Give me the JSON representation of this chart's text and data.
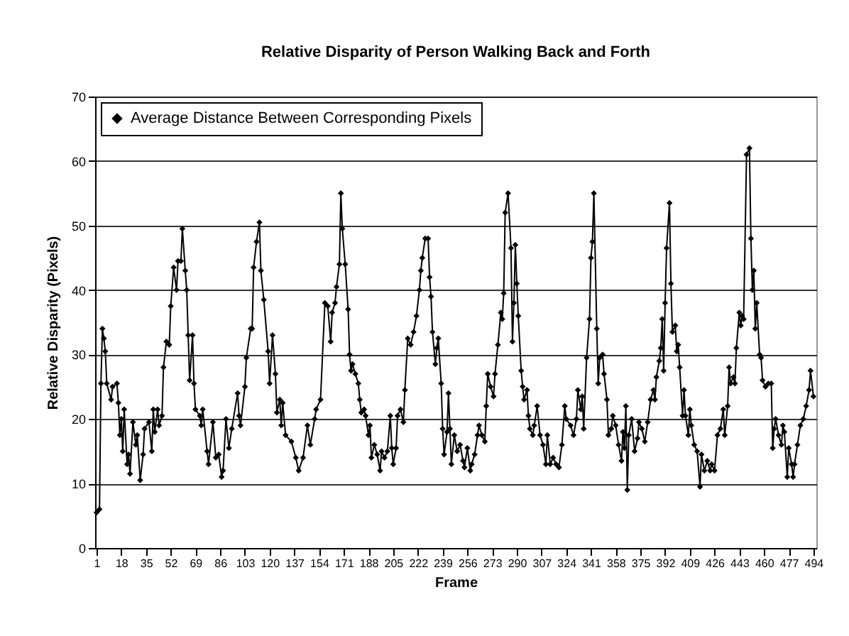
{
  "chart_data": {
    "type": "line",
    "title": "Relative Disparity of Person Walking Back and Forth",
    "xlabel": "Frame",
    "ylabel": "Relative Disparity (Pixels)",
    "x": [
      1,
      3,
      4,
      5,
      6,
      7,
      8,
      11,
      12,
      15,
      16,
      17,
      18,
      19,
      20,
      22,
      23,
      24,
      26,
      28,
      29,
      31,
      33,
      34,
      37,
      39,
      40,
      41,
      43,
      44,
      46,
      47,
      49,
      51,
      52,
      54,
      56,
      57,
      59,
      60,
      62,
      63,
      64,
      65,
      67,
      68,
      69,
      72,
      73,
      74,
      77,
      78,
      81,
      83,
      85,
      87,
      88,
      90,
      92,
      94,
      98,
      99,
      100,
      103,
      104,
      107,
      108,
      109,
      111,
      113,
      114,
      116,
      119,
      120,
      122,
      124,
      125,
      127,
      128,
      129,
      131,
      135,
      138,
      140,
      143,
      146,
      148,
      151,
      152,
      155,
      158,
      160,
      162,
      163,
      165,
      166,
      168,
      169,
      170,
      172,
      174,
      175,
      176,
      177,
      179,
      181,
      182,
      183,
      185,
      186,
      188,
      189,
      190,
      192,
      194,
      196,
      197,
      199,
      201,
      203,
      204,
      205,
      207,
      208,
      210,
      212,
      213,
      215,
      217,
      219,
      221,
      223,
      224,
      225,
      227,
      229,
      230,
      231,
      232,
      234,
      235,
      236,
      238,
      239,
      240,
      242,
      243,
      244,
      245,
      247,
      249,
      251,
      253,
      254,
      256,
      258,
      259,
      261,
      263,
      264,
      266,
      268,
      269,
      270,
      272,
      274,
      275,
      277,
      279,
      280,
      281,
      282,
      284,
      286,
      287,
      288,
      289,
      290,
      291,
      293,
      294,
      295,
      297,
      298,
      299,
      301,
      302,
      304,
      306,
      308,
      310,
      311,
      313,
      315,
      317,
      319,
      321,
      323,
      324,
      327,
      329,
      331,
      332,
      334,
      335,
      336,
      338,
      340,
      341,
      342,
      343,
      345,
      346,
      347,
      349,
      350,
      352,
      353,
      355,
      356,
      358,
      360,
      362,
      363,
      364,
      365,
      366,
      367,
      369,
      371,
      373,
      374,
      376,
      378,
      380,
      382,
      384,
      385,
      386,
      388,
      389,
      390,
      391,
      392,
      393,
      395,
      396,
      397,
      399,
      400,
      401,
      402,
      404,
      405,
      406,
      408,
      409,
      410,
      412,
      414,
      416,
      417,
      419,
      421,
      423,
      424,
      426,
      428,
      430,
      432,
      433,
      435,
      436,
      437,
      439,
      440,
      441,
      443,
      444,
      445,
      446,
      448,
      450,
      451,
      452,
      453,
      454,
      455,
      457,
      458,
      459,
      461,
      463,
      465,
      466,
      467,
      468,
      470,
      472,
      473,
      474,
      476,
      477,
      479,
      480,
      481,
      483,
      485,
      487,
      489,
      491,
      492,
      494
    ],
    "series": [
      {
        "name": "Average Distance Between Corresponding Pixels",
        "color": "#000000",
        "values": [
          5.5,
          6,
          25.5,
          34,
          32.5,
          30.5,
          25.5,
          23,
          25,
          25.5,
          22.5,
          17.5,
          20,
          15,
          21.5,
          13,
          14.5,
          11.5,
          19.5,
          16,
          17.5,
          10.5,
          14.5,
          18.5,
          19.5,
          15,
          21.5,
          18,
          21.5,
          19,
          20.5,
          28,
          32,
          31.5,
          37.5,
          43.5,
          40,
          44.5,
          44.5,
          49.5,
          43,
          40,
          33,
          26,
          33,
          25.5,
          21.5,
          20.5,
          19,
          21.5,
          15,
          13,
          19.5,
          14,
          14.5,
          11,
          12,
          20,
          15.5,
          18.5,
          24,
          20.5,
          19,
          25,
          29.5,
          34,
          34,
          43.5,
          47.5,
          50.5,
          43,
          38.5,
          30.5,
          25.5,
          33,
          27,
          21,
          23,
          19,
          22.5,
          17.5,
          16.5,
          14,
          12,
          14,
          19,
          16,
          20,
          21.5,
          23,
          38,
          37.5,
          32,
          36.5,
          38,
          40.5,
          44,
          55,
          49.5,
          44,
          37,
          30,
          27.5,
          28.5,
          27,
          25.5,
          23,
          21,
          21.5,
          20.5,
          17.5,
          19,
          14,
          16,
          14.5,
          12,
          15,
          14,
          15,
          20.5,
          15.5,
          13,
          15.5,
          20.5,
          21.5,
          19.5,
          24.5,
          32.5,
          31.5,
          33.5,
          36,
          40,
          43,
          45,
          48,
          48,
          42,
          39,
          33.5,
          28.5,
          31,
          32.5,
          25.5,
          18.5,
          14.5,
          18,
          24,
          18.5,
          13,
          17.5,
          15,
          16,
          13.5,
          12.5,
          15.5,
          12,
          13,
          14.5,
          17.5,
          19,
          17.5,
          16.5,
          22,
          27,
          25,
          23.5,
          27,
          31.5,
          36.5,
          35.5,
          39.5,
          52,
          55,
          46.5,
          32,
          38,
          47,
          41,
          36,
          27.5,
          25,
          23,
          24.5,
          20.5,
          18.5,
          17.5,
          19,
          22,
          17.5,
          16,
          13,
          17.5,
          13,
          14,
          13,
          12.5,
          16,
          22,
          20,
          19,
          17.5,
          20,
          24.5,
          21.5,
          23.5,
          18.5,
          29.5,
          35.5,
          45,
          47.5,
          55,
          34,
          25.5,
          29.5,
          30,
          27,
          23,
          17.5,
          18.5,
          20.5,
          19,
          16,
          13.5,
          18,
          15.5,
          22,
          9,
          17.5,
          20,
          15,
          17,
          19.5,
          18.5,
          16.5,
          19.5,
          23,
          24.5,
          23,
          26.5,
          29,
          31,
          35.5,
          27.5,
          38,
          46.5,
          53.5,
          41,
          33.5,
          34.5,
          30.5,
          31.5,
          28,
          20.5,
          24.5,
          20.5,
          17.5,
          21.5,
          19,
          16,
          15,
          9.5,
          14.5,
          12,
          13.5,
          12,
          13,
          12,
          17.5,
          18.5,
          21.5,
          17.5,
          22,
          28,
          25.5,
          26.5,
          25.5,
          31,
          36.5,
          34.5,
          36,
          35.5,
          61,
          62,
          48,
          40,
          43,
          34,
          38,
          30,
          29.5,
          26,
          25,
          25.5,
          25.5,
          15.5,
          18.5,
          20,
          17.5,
          16,
          19,
          18,
          11,
          15.5,
          13,
          11,
          13,
          16,
          19,
          20,
          22,
          24.5,
          27.5,
          23.5
        ]
      }
    ],
    "xlim": [
      0,
      496
    ],
    "xticks": [
      1,
      18,
      35,
      52,
      69,
      86,
      103,
      120,
      137,
      154,
      171,
      188,
      205,
      222,
      239,
      256,
      273,
      290,
      307,
      324,
      341,
      358,
      375,
      392,
      409,
      426,
      443,
      460,
      477,
      494
    ],
    "ylim": [
      0,
      70
    ],
    "yticks": [
      0,
      10,
      20,
      30,
      40,
      50,
      60,
      70
    ],
    "grid": "y",
    "legend": "top left",
    "marker": "diamond",
    "line_style": "solid"
  }
}
